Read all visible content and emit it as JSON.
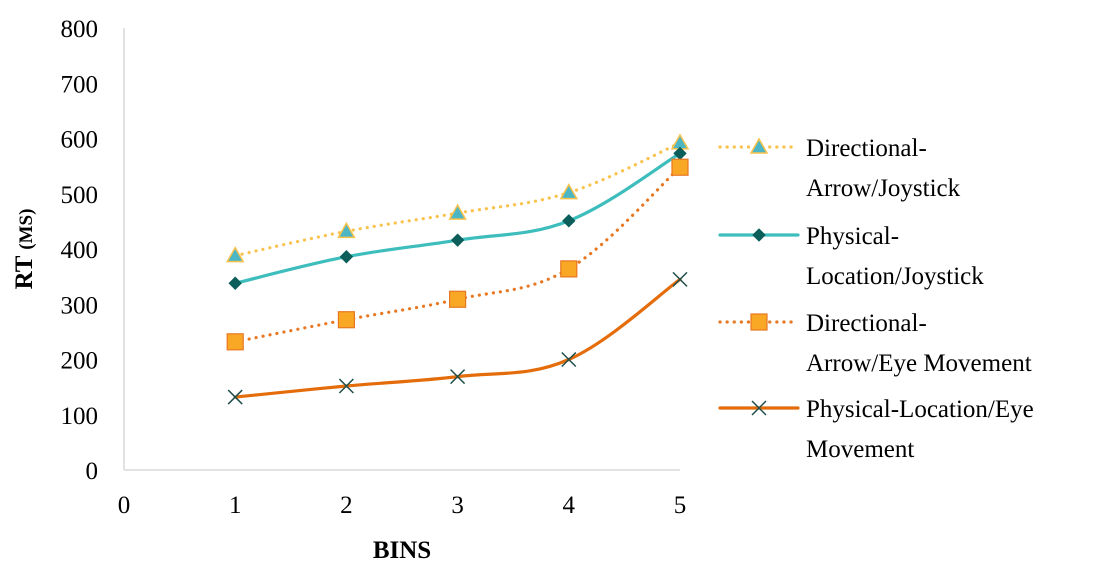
{
  "chart_data": {
    "type": "line",
    "xlabel": "BINS",
    "ylabel": {
      "main": "RT",
      "unit": "(MS)"
    },
    "xlim": [
      0,
      5
    ],
    "ylim": [
      0,
      800
    ],
    "x_ticks": [
      0,
      1,
      2,
      3,
      4,
      5
    ],
    "y_ticks": [
      0,
      100,
      200,
      300,
      400,
      500,
      600,
      700,
      800
    ],
    "grid": false,
    "legend_position": "right",
    "x": [
      1,
      2,
      3,
      4,
      5
    ],
    "series": [
      {
        "name": "Directional-Arrow/Joystick",
        "legend_lines": [
          "Directional-",
          "Arrow/Joystick"
        ],
        "values": [
          388,
          432,
          465,
          502,
          592
        ],
        "color": "#F9C24C",
        "marker_fill": "#4DB6C4",
        "marker": "triangle-icon",
        "line_style": "dotted",
        "smooth": true
      },
      {
        "name": "Physical-Location/Joystick",
        "legend_lines": [
          "Physical-",
          "Location/Joystick"
        ],
        "values": [
          338,
          386,
          416,
          451,
          573
        ],
        "color": "#3DBDBC",
        "marker_fill": "#0B5E5A",
        "marker": "diamond-icon",
        "line_style": "solid",
        "smooth": true
      },
      {
        "name": "Directional-Arrow/Eye Movement",
        "legend_lines": [
          "Directional-",
          "Arrow/Eye Movement"
        ],
        "values": [
          232,
          272,
          309,
          364,
          548
        ],
        "color": "#E87722",
        "marker_fill": "#F9A825",
        "marker": "square-icon",
        "line_style": "dotted",
        "smooth": true
      },
      {
        "name": "Physical-Location/Eye Movement",
        "legend_lines": [
          "Physical-Location/Eye",
          "Movement"
        ],
        "values": [
          132,
          152,
          169,
          200,
          345
        ],
        "color": "#E46C0A",
        "marker_fill": "#1F4E4A",
        "marker": "x-icon",
        "line_style": "solid",
        "smooth": true
      }
    ]
  }
}
